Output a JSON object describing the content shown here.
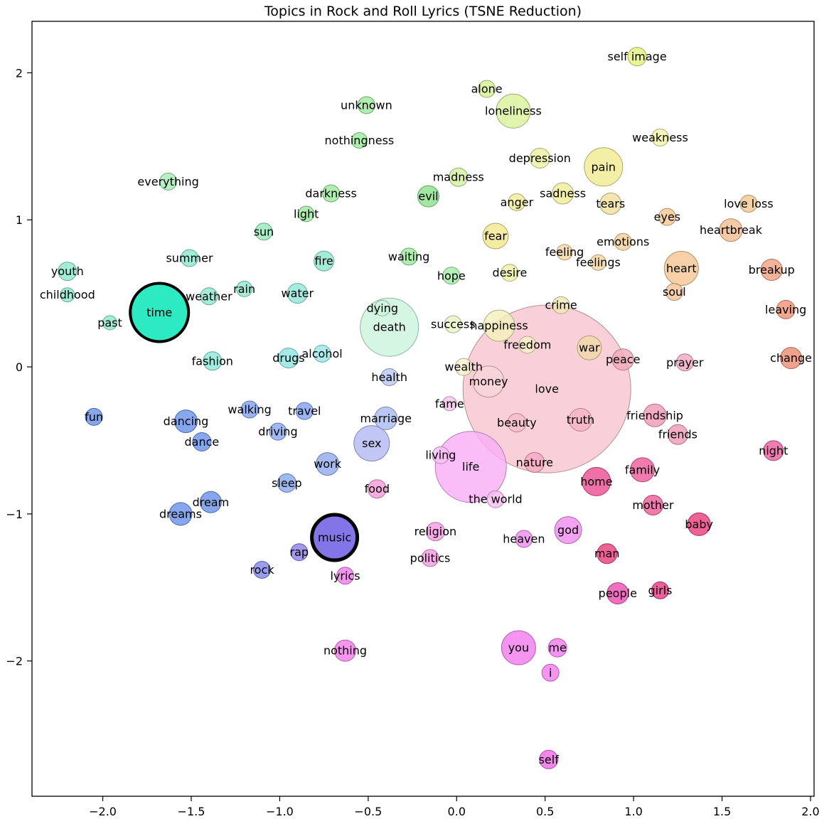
{
  "chart_data": {
    "type": "scatter",
    "title": "Topics in Rock and Roll Lyrics (TSNE Reduction)",
    "xlabel": "",
    "ylabel": "",
    "xlim": [
      -2.4,
      2.02
    ],
    "ylim": [
      -2.92,
      2.35
    ],
    "grid": false,
    "legend": null,
    "x_ticks": [
      {
        "v": -2.0,
        "label": "−2.0"
      },
      {
        "v": -1.5,
        "label": "−1.5"
      },
      {
        "v": -1.0,
        "label": "−1.0"
      },
      {
        "v": -0.5,
        "label": "−0.5"
      },
      {
        "v": 0.0,
        "label": "0.0"
      },
      {
        "v": 0.5,
        "label": "0.5"
      },
      {
        "v": 1.0,
        "label": "1.0"
      },
      {
        "v": 1.5,
        "label": "1.5"
      },
      {
        "v": 2.0,
        "label": "2.0"
      }
    ],
    "y_ticks": [
      {
        "v": -2,
        "label": "−2"
      },
      {
        "v": -1,
        "label": "−1"
      },
      {
        "v": 0,
        "label": "0"
      },
      {
        "v": 1,
        "label": "1"
      },
      {
        "v": 2,
        "label": "2"
      }
    ],
    "points": [
      {
        "label": "self image",
        "x": 1.02,
        "y": 2.11,
        "r": 13,
        "color": "#e4f27e"
      },
      {
        "label": "alone",
        "x": 0.17,
        "y": 1.89,
        "r": 12,
        "color": "#d6f294"
      },
      {
        "label": "unknown",
        "x": -0.51,
        "y": 1.78,
        "r": 12,
        "color": "#9dea9d"
      },
      {
        "label": "loneliness",
        "x": 0.32,
        "y": 1.74,
        "r": 24,
        "color": "#d9f29b"
      },
      {
        "label": "weakness",
        "x": 1.15,
        "y": 1.56,
        "r": 12,
        "color": "#f4f4a8"
      },
      {
        "label": "nothingness",
        "x": -0.55,
        "y": 1.54,
        "r": 11,
        "color": "#9dea9d"
      },
      {
        "label": "depression",
        "x": 0.47,
        "y": 1.42,
        "r": 14,
        "color": "#eef0a2"
      },
      {
        "label": "pain",
        "x": 0.83,
        "y": 1.36,
        "r": 27,
        "color": "#f2ec94"
      },
      {
        "label": "everything",
        "x": -1.63,
        "y": 1.26,
        "r": 12,
        "color": "#a6edb6"
      },
      {
        "label": "madness",
        "x": 0.01,
        "y": 1.29,
        "r": 13,
        "color": "#d4ef9e"
      },
      {
        "label": "sadness",
        "x": 0.6,
        "y": 1.18,
        "r": 15,
        "color": "#f0ec9a"
      },
      {
        "label": "darkness",
        "x": -0.71,
        "y": 1.18,
        "r": 12,
        "color": "#9dea9d"
      },
      {
        "label": "evil",
        "x": -0.16,
        "y": 1.16,
        "r": 15,
        "color": "#8ce08c"
      },
      {
        "label": "anger",
        "x": 0.34,
        "y": 1.12,
        "r": 12,
        "color": "#f0ec9a"
      },
      {
        "label": "tears",
        "x": 0.87,
        "y": 1.11,
        "r": 15,
        "color": "#f2e09c"
      },
      {
        "label": "love loss",
        "x": 1.65,
        "y": 1.11,
        "r": 12,
        "color": "#f4c994"
      },
      {
        "label": "light",
        "x": -0.85,
        "y": 1.04,
        "r": 11,
        "color": "#9dea9d"
      },
      {
        "label": "eyes",
        "x": 1.19,
        "y": 1.02,
        "r": 12,
        "color": "#f4c994"
      },
      {
        "label": "heartbreak",
        "x": 1.55,
        "y": 0.93,
        "r": 16,
        "color": "#f4bd92"
      },
      {
        "label": "sun",
        "x": -1.09,
        "y": 0.92,
        "r": 12,
        "color": "#96eabc"
      },
      {
        "label": "fear",
        "x": 0.22,
        "y": 0.89,
        "r": 18,
        "color": "#f2e88e"
      },
      {
        "label": "emotions",
        "x": 0.94,
        "y": 0.85,
        "r": 12,
        "color": "#f4cf98"
      },
      {
        "label": "feeling",
        "x": 0.61,
        "y": 0.78,
        "r": 11,
        "color": "#f4d7a2"
      },
      {
        "label": "feelings",
        "x": 0.8,
        "y": 0.71,
        "r": 11,
        "color": "#f4d7a2"
      },
      {
        "label": "summer",
        "x": -1.51,
        "y": 0.74,
        "r": 12,
        "color": "#8fe8cf"
      },
      {
        "label": "fire",
        "x": -0.75,
        "y": 0.72,
        "r": 14,
        "color": "#8fe8cf"
      },
      {
        "label": "waiting",
        "x": -0.27,
        "y": 0.75,
        "r": 12,
        "color": "#9dea9d"
      },
      {
        "label": "heart",
        "x": 1.27,
        "y": 0.67,
        "r": 24,
        "color": "#f4c794"
      },
      {
        "label": "breakup",
        "x": 1.78,
        "y": 0.66,
        "r": 15,
        "color": "#f0a184"
      },
      {
        "label": "youth",
        "x": -2.2,
        "y": 0.65,
        "r": 13,
        "color": "#8fe8cf"
      },
      {
        "label": "hope",
        "x": -0.03,
        "y": 0.62,
        "r": 12,
        "color": "#a6eda6"
      },
      {
        "label": "desire",
        "x": 0.3,
        "y": 0.64,
        "r": 12,
        "color": "#ecf0a6"
      },
      {
        "label": "soul",
        "x": 1.23,
        "y": 0.51,
        "r": 12,
        "color": "#f2c496"
      },
      {
        "label": "childhood",
        "x": -2.2,
        "y": 0.49,
        "r": 10,
        "color": "#8fe8cf"
      },
      {
        "label": "rain",
        "x": -1.2,
        "y": 0.53,
        "r": 11,
        "color": "#8fe8cf"
      },
      {
        "label": "weather",
        "x": -1.4,
        "y": 0.48,
        "r": 12,
        "color": "#8fe8cf"
      },
      {
        "label": "water",
        "x": -0.9,
        "y": 0.5,
        "r": 14,
        "color": "#8fe8d8"
      },
      {
        "label": "time",
        "x": -1.68,
        "y": 0.37,
        "r": 41,
        "color": "#00e5b4",
        "edge": "#000000",
        "edge_width": 4
      },
      {
        "label": "leaving",
        "x": 1.86,
        "y": 0.39,
        "r": 13,
        "color": "#ee9478"
      },
      {
        "label": "dying",
        "x": -0.42,
        "y": 0.4,
        "r": 11,
        "color": "#cdf4de"
      },
      {
        "label": "death",
        "x": -0.38,
        "y": 0.27,
        "r": 41,
        "color": "#cdf4de"
      },
      {
        "label": "past",
        "x": -1.96,
        "y": 0.3,
        "r": 10,
        "color": "#8fe8cf"
      },
      {
        "label": "success",
        "x": -0.02,
        "y": 0.29,
        "r": 12,
        "color": "#eaf4c4"
      },
      {
        "label": "happiness",
        "x": 0.24,
        "y": 0.28,
        "r": 22,
        "color": "#f4f0bc"
      },
      {
        "label": "crime",
        "x": 0.59,
        "y": 0.42,
        "r": 12,
        "color": "#f2e8b4"
      },
      {
        "label": "freedom",
        "x": 0.4,
        "y": 0.15,
        "r": 12,
        "color": "#f6f0c6"
      },
      {
        "label": "war",
        "x": 0.75,
        "y": 0.13,
        "r": 17,
        "color": "#f2d8a8"
      },
      {
        "label": "fashion",
        "x": -1.38,
        "y": 0.04,
        "r": 13,
        "color": "#8fe8d8"
      },
      {
        "label": "drugs",
        "x": -0.95,
        "y": 0.06,
        "r": 14,
        "color": "#8fe6e2"
      },
      {
        "label": "alcohol",
        "x": -0.76,
        "y": 0.09,
        "r": 12,
        "color": "#9ae8e8"
      },
      {
        "label": "peace",
        "x": 0.94,
        "y": 0.05,
        "r": 15,
        "color": "#f2a9ba"
      },
      {
        "label": "prayer",
        "x": 1.29,
        "y": 0.03,
        "r": 12,
        "color": "#f0a9c4"
      },
      {
        "label": "change",
        "x": 1.89,
        "y": 0.06,
        "r": 15,
        "color": "#ee8e74"
      },
      {
        "label": "wealth",
        "x": 0.04,
        "y": 0.0,
        "r": 12,
        "color": "#f7f1ca"
      },
      {
        "label": "health",
        "x": -0.38,
        "y": -0.07,
        "r": 12,
        "color": "#b9c9f4"
      },
      {
        "label": "money",
        "x": 0.18,
        "y": -0.1,
        "r": 22,
        "color": "#f8d3d8"
      },
      {
        "label": "love",
        "x": 0.51,
        "y": -0.15,
        "r": 118,
        "color": "#f8c6cf"
      },
      {
        "label": "fun",
        "x": -2.05,
        "y": -0.34,
        "r": 12,
        "color": "#6b93ea"
      },
      {
        "label": "fame",
        "x": -0.04,
        "y": -0.25,
        "r": 10,
        "color": "#f6c4ec"
      },
      {
        "label": "walking",
        "x": -1.17,
        "y": -0.29,
        "r": 12,
        "color": "#84a4ee"
      },
      {
        "label": "travel",
        "x": -0.86,
        "y": -0.3,
        "r": 12,
        "color": "#84a4ee"
      },
      {
        "label": "marriage",
        "x": -0.4,
        "y": -0.35,
        "r": 16,
        "color": "#adbcf2"
      },
      {
        "label": "friendship",
        "x": 1.12,
        "y": -0.33,
        "r": 16,
        "color": "#f09ab8"
      },
      {
        "label": "dancing",
        "x": -1.53,
        "y": -0.37,
        "r": 16,
        "color": "#6b93ea"
      },
      {
        "label": "beauty",
        "x": 0.34,
        "y": -0.38,
        "r": 13,
        "color": "#f8bcca"
      },
      {
        "label": "truth",
        "x": 0.7,
        "y": -0.36,
        "r": 16,
        "color": "#f4b3c4"
      },
      {
        "label": "friends",
        "x": 1.25,
        "y": -0.46,
        "r": 14,
        "color": "#f09ab8"
      },
      {
        "label": "driving",
        "x": -1.01,
        "y": -0.44,
        "r": 12,
        "color": "#8aaaf0"
      },
      {
        "label": "dance",
        "x": -1.44,
        "y": -0.51,
        "r": 13,
        "color": "#6b93ea"
      },
      {
        "label": "night",
        "x": 1.79,
        "y": -0.57,
        "r": 14,
        "color": "#e9619f"
      },
      {
        "label": "sex",
        "x": -0.48,
        "y": -0.52,
        "r": 25,
        "color": "#b3baf2"
      },
      {
        "label": "living",
        "x": -0.09,
        "y": -0.6,
        "r": 12,
        "color": "#f8c0f4"
      },
      {
        "label": "life",
        "x": 0.08,
        "y": -0.68,
        "r": 50,
        "color": "#f9aff5"
      },
      {
        "label": "work",
        "x": -0.73,
        "y": -0.66,
        "r": 16,
        "color": "#93a9ee"
      },
      {
        "label": "nature",
        "x": 0.44,
        "y": -0.65,
        "r": 14,
        "color": "#f6a8c2"
      },
      {
        "label": "family",
        "x": 1.05,
        "y": -0.7,
        "r": 17,
        "color": "#ee5e9e"
      },
      {
        "label": "home",
        "x": 0.79,
        "y": -0.78,
        "r": 20,
        "color": "#ec4f92"
      },
      {
        "label": "sleep",
        "x": -0.96,
        "y": -0.79,
        "r": 13,
        "color": "#8aaaf0"
      },
      {
        "label": "food",
        "x": -0.45,
        "y": -0.83,
        "r": 13,
        "color": "#f69cda"
      },
      {
        "label": "the world",
        "x": 0.22,
        "y": -0.9,
        "r": 12,
        "color": "#f8bcf2"
      },
      {
        "label": "dream",
        "x": -1.39,
        "y": -0.92,
        "r": 15,
        "color": "#6b93ea"
      },
      {
        "label": "mother",
        "x": 1.11,
        "y": -0.94,
        "r": 14,
        "color": "#ee5e9a"
      },
      {
        "label": "dreams",
        "x": -1.56,
        "y": -1.0,
        "r": 16,
        "color": "#6b93ea"
      },
      {
        "label": "baby",
        "x": 1.37,
        "y": -1.07,
        "r": 16,
        "color": "#ea417f"
      },
      {
        "label": "music",
        "x": -0.69,
        "y": -1.16,
        "r": 32,
        "color": "#6657e2",
        "edge": "#000000",
        "edge_width": 5
      },
      {
        "label": "religion",
        "x": -0.12,
        "y": -1.12,
        "r": 13,
        "color": "#f69ce2"
      },
      {
        "label": "god",
        "x": 0.63,
        "y": -1.11,
        "r": 19,
        "color": "#f08cee"
      },
      {
        "label": "heaven",
        "x": 0.38,
        "y": -1.17,
        "r": 12,
        "color": "#f08cee"
      },
      {
        "label": "rap",
        "x": -0.89,
        "y": -1.26,
        "r": 12,
        "color": "#8f80ea"
      },
      {
        "label": "politics",
        "x": -0.15,
        "y": -1.3,
        "r": 12,
        "color": "#f69ce2"
      },
      {
        "label": "man",
        "x": 0.85,
        "y": -1.27,
        "r": 14,
        "color": "#ea417f"
      },
      {
        "label": "rock",
        "x": -1.1,
        "y": -1.38,
        "r": 12,
        "color": "#8487ea"
      },
      {
        "label": "lyrics",
        "x": -0.63,
        "y": -1.42,
        "r": 12,
        "color": "#f07eea"
      },
      {
        "label": "people",
        "x": 0.91,
        "y": -1.54,
        "r": 15,
        "color": "#ec4fb2"
      },
      {
        "label": "girls",
        "x": 1.15,
        "y": -1.52,
        "r": 12,
        "color": "#e93a86"
      },
      {
        "label": "nothing",
        "x": -0.63,
        "y": -1.93,
        "r": 15,
        "color": "#f47eea"
      },
      {
        "label": "you",
        "x": 0.35,
        "y": -1.91,
        "r": 24,
        "color": "#f47eee"
      },
      {
        "label": "me",
        "x": 0.57,
        "y": -1.91,
        "r": 13,
        "color": "#f47eee"
      },
      {
        "label": "i",
        "x": 0.53,
        "y": -2.08,
        "r": 12,
        "color": "#f47eee"
      },
      {
        "label": "self",
        "x": 0.52,
        "y": -2.67,
        "r": 13,
        "color": "#ee6ce6"
      }
    ]
  }
}
